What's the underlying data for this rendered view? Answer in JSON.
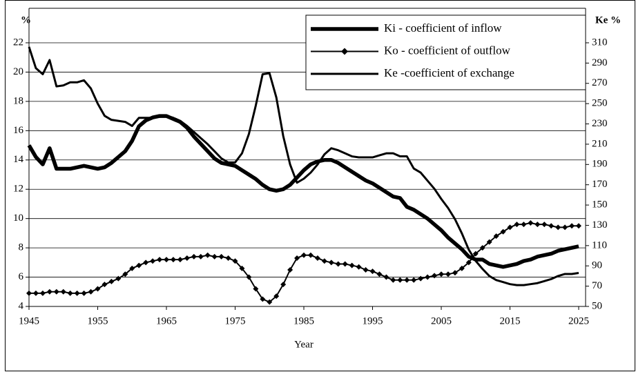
{
  "chart_data": {
    "type": "line",
    "ylabel": "%",
    "y2label": "Ke %",
    "xlabel": "Year",
    "x": [
      1945,
      1946,
      1947,
      1948,
      1949,
      1950,
      1951,
      1952,
      1953,
      1954,
      1955,
      1956,
      1957,
      1958,
      1959,
      1960,
      1961,
      1962,
      1963,
      1964,
      1965,
      1966,
      1967,
      1968,
      1969,
      1970,
      1971,
      1972,
      1973,
      1974,
      1975,
      1976,
      1977,
      1978,
      1979,
      1980,
      1981,
      1982,
      1983,
      1984,
      1985,
      1986,
      1987,
      1988,
      1989,
      1990,
      1991,
      1992,
      1993,
      1994,
      1995,
      1996,
      1997,
      1998,
      1999,
      2000,
      2001,
      2002,
      2003,
      2004,
      2005,
      2006,
      2007,
      2008,
      2009,
      2010,
      2011,
      2012,
      2013,
      2014,
      2015,
      2016,
      2017,
      2018,
      2019,
      2020,
      2021,
      2022,
      2023,
      2024,
      2025
    ],
    "series": [
      {
        "name": "Ki - coefficient of inflow",
        "color": "#000000",
        "values": [
          15.0,
          14.2,
          13.7,
          14.8,
          13.4,
          13.4,
          13.4,
          13.5,
          13.6,
          13.5,
          13.4,
          13.5,
          13.8,
          14.2,
          14.6,
          15.3,
          16.3,
          16.7,
          16.9,
          17.0,
          17.0,
          16.8,
          16.6,
          16.2,
          15.6,
          15.1,
          14.6,
          14.1,
          13.8,
          13.7,
          13.6,
          13.3,
          13.0,
          12.7,
          12.3,
          12.0,
          11.9,
          12.0,
          12.3,
          12.8,
          13.3,
          13.7,
          13.9,
          14.0,
          14.0,
          13.8,
          13.5,
          13.2,
          12.9,
          12.6,
          12.4,
          12.1,
          11.8,
          11.5,
          11.4,
          10.8,
          10.6,
          10.3,
          10.0,
          9.6,
          9.2,
          8.7,
          8.3,
          7.9,
          7.4,
          7.2,
          7.2,
          6.9,
          6.8,
          6.7,
          6.8,
          6.9,
          7.1,
          7.2,
          7.4,
          7.5,
          7.6,
          7.8,
          7.9,
          8.0,
          8.1
        ]
      },
      {
        "name": "Ko - coefficient of outflow",
        "color": "#000000",
        "values": [
          4.9,
          4.9,
          4.9,
          5.0,
          5.0,
          5.0,
          4.9,
          4.9,
          4.9,
          5.0,
          5.2,
          5.5,
          5.7,
          5.9,
          6.2,
          6.6,
          6.8,
          7.0,
          7.1,
          7.2,
          7.2,
          7.2,
          7.2,
          7.3,
          7.4,
          7.4,
          7.5,
          7.4,
          7.4,
          7.3,
          7.1,
          6.6,
          6.0,
          5.2,
          4.5,
          4.3,
          4.7,
          5.5,
          6.5,
          7.3,
          7.5,
          7.5,
          7.3,
          7.1,
          7.0,
          6.9,
          6.9,
          6.8,
          6.7,
          6.5,
          6.4,
          6.2,
          6.0,
          5.8,
          5.8,
          5.8,
          5.8,
          5.9,
          6.0,
          6.1,
          6.2,
          6.2,
          6.3,
          6.6,
          7.0,
          7.6,
          8.0,
          8.4,
          8.8,
          9.1,
          9.4,
          9.6,
          9.6,
          9.7,
          9.6,
          9.6,
          9.5,
          9.4,
          9.4,
          9.5,
          9.5
        ]
      },
      {
        "name": "Ke -coefficient of exchange",
        "color": "#000000",
        "axis": "y2",
        "values": [
          306,
          285,
          279,
          293,
          267,
          268,
          271,
          271,
          273,
          265,
          250,
          238,
          234,
          233,
          232,
          228,
          236,
          236,
          236,
          237,
          238,
          236,
          233,
          228,
          222,
          216,
          210,
          203,
          196,
          192,
          192,
          201,
          220,
          248,
          279,
          280,
          256,
          218,
          190,
          172,
          176,
          182,
          190,
          200,
          206,
          204,
          201,
          198,
          197,
          197,
          197,
          199,
          201,
          201,
          198,
          198,
          186,
          182,
          174,
          166,
          156,
          147,
          136,
          122,
          106,
          95,
          87,
          80,
          76,
          74,
          72,
          71,
          71,
          72,
          73,
          75,
          77,
          80,
          82,
          82,
          83
        ]
      }
    ],
    "xlim": [
      1945,
      2025
    ],
    "xticks": [
      1945,
      1955,
      1965,
      1975,
      1985,
      1995,
      2005,
      2015,
      2025
    ],
    "ylim": [
      4,
      22
    ],
    "yticks": [
      4,
      6,
      8,
      10,
      12,
      14,
      16,
      18,
      20,
      22
    ],
    "y2lim": [
      50,
      310
    ],
    "y2ticks": [
      50,
      70,
      90,
      110,
      130,
      150,
      170,
      190,
      210,
      230,
      250,
      270,
      290,
      310
    ],
    "grid": true
  }
}
